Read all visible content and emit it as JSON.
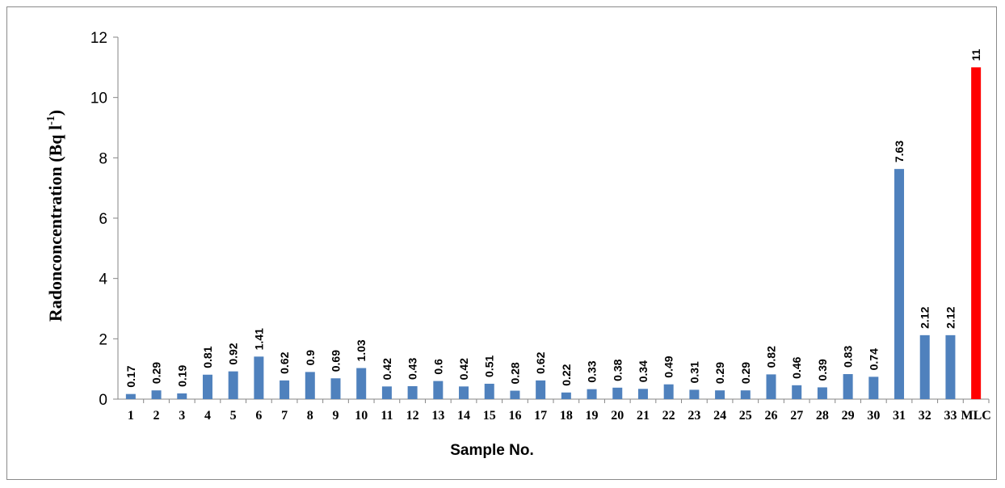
{
  "chart_data": {
    "type": "bar",
    "categories": [
      "1",
      "2",
      "3",
      "4",
      "5",
      "6",
      "7",
      "8",
      "9",
      "10",
      "11",
      "12",
      "13",
      "14",
      "15",
      "16",
      "17",
      "18",
      "19",
      "20",
      "21",
      "22",
      "23",
      "24",
      "25",
      "26",
      "27",
      "28",
      "29",
      "30",
      "31",
      "32",
      "33",
      "MLC"
    ],
    "values": [
      0.17,
      0.29,
      0.19,
      0.81,
      0.92,
      1.41,
      0.62,
      0.9,
      0.69,
      1.03,
      0.42,
      0.43,
      0.6,
      0.42,
      0.51,
      0.28,
      0.62,
      0.22,
      0.33,
      0.38,
      0.34,
      0.49,
      0.31,
      0.29,
      0.29,
      0.82,
      0.46,
      0.39,
      0.83,
      0.74,
      7.63,
      2.12,
      2.12,
      11
    ],
    "data_labels": [
      "0.17",
      "0.29",
      "0.19",
      "0.81",
      "0.92",
      "1.41",
      "0.62",
      "0.9",
      "0.69",
      "1.03",
      "0.42",
      "0.43",
      "0.6",
      "0.42",
      "0.51",
      "0.28",
      "0.62",
      "0.22",
      "0.33",
      "0.38",
      "0.34",
      "0.49",
      "0.31",
      "0.29",
      "0.29",
      "0.82",
      "0.46",
      "0.39",
      "0.83",
      "0.74",
      "7.63",
      "2.12",
      "2.12",
      "11"
    ],
    "bar_colors": [
      "#4f81bd",
      "#4f81bd",
      "#4f81bd",
      "#4f81bd",
      "#4f81bd",
      "#4f81bd",
      "#4f81bd",
      "#4f81bd",
      "#4f81bd",
      "#4f81bd",
      "#4f81bd",
      "#4f81bd",
      "#4f81bd",
      "#4f81bd",
      "#4f81bd",
      "#4f81bd",
      "#4f81bd",
      "#4f81bd",
      "#4f81bd",
      "#4f81bd",
      "#4f81bd",
      "#4f81bd",
      "#4f81bd",
      "#4f81bd",
      "#4f81bd",
      "#4f81bd",
      "#4f81bd",
      "#4f81bd",
      "#4f81bd",
      "#4f81bd",
      "#4f81bd",
      "#4f81bd",
      "#4f81bd",
      "#ff0000"
    ],
    "xlabel": "Sample No.",
    "ylabel": "Radonconcentration (Bq l",
    "ylabel_superscript": "-1",
    "ylabel_suffix": ")",
    "ylim": [
      0,
      12
    ],
    "yticks": [
      0,
      2,
      4,
      6,
      8,
      10,
      12
    ],
    "grid": false,
    "legend": "none"
  }
}
